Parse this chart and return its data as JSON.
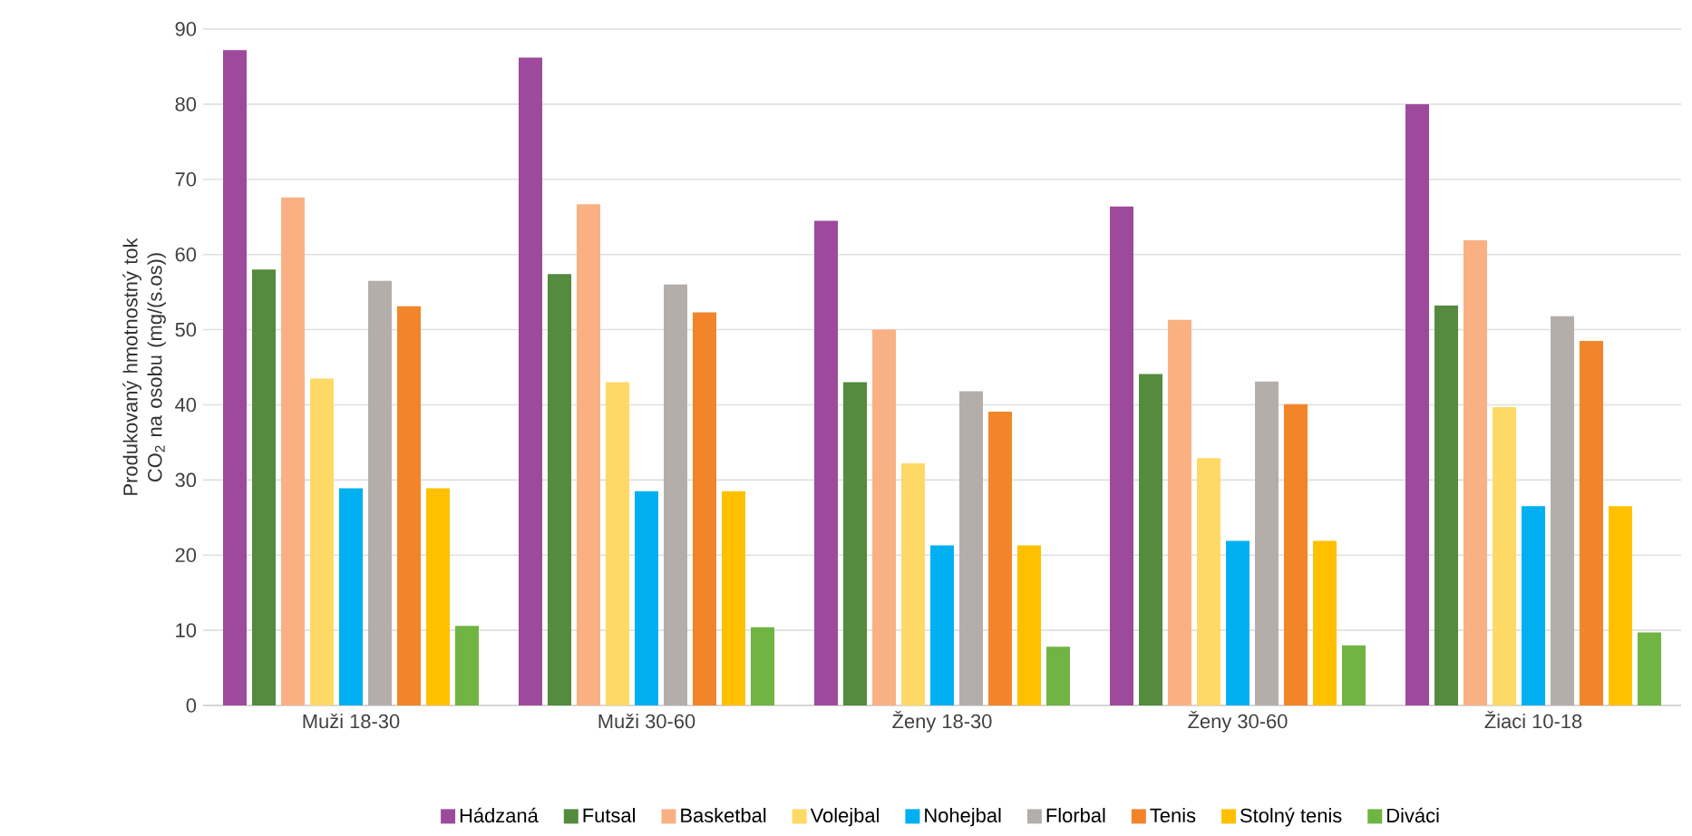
{
  "chart_data": {
    "type": "bar",
    "ylabel": "Produkovaný hmotnostný tok CO$_{2}$ na osobu (mg/(s.os))",
    "categories": [
      "Muži 18-30",
      "Muži 30-60",
      "Ženy 18-30",
      "Ženy 30-60",
      "Žiaci 10-18"
    ],
    "series": [
      {
        "name": "Hádzaná",
        "color": "#9e4a9c",
        "values": [
          87.2,
          86.2,
          64.5,
          66.4,
          80.0
        ]
      },
      {
        "name": "Futsal",
        "color": "#548b3e",
        "values": [
          58.0,
          57.4,
          43.0,
          44.1,
          53.2
        ]
      },
      {
        "name": "Basketbal",
        "color": "#f9b183",
        "values": [
          67.6,
          66.7,
          50.0,
          51.3,
          61.9
        ]
      },
      {
        "name": "Volejbal",
        "color": "#ffd966",
        "values": [
          43.5,
          43.0,
          32.2,
          32.9,
          39.7
        ]
      },
      {
        "name": "Nohejbal",
        "color": "#00b0f0",
        "values": [
          28.9,
          28.5,
          21.3,
          21.9,
          26.5
        ]
      },
      {
        "name": "Florbal",
        "color": "#b4aeab",
        "values": [
          56.5,
          56.0,
          41.8,
          43.1,
          51.8
        ]
      },
      {
        "name": "Tenis",
        "color": "#f28529",
        "values": [
          53.1,
          52.3,
          39.1,
          40.1,
          48.5
        ]
      },
      {
        "name": "Stolný tenis",
        "color": "#ffc000",
        "values": [
          28.9,
          28.5,
          21.3,
          21.9,
          26.5
        ]
      },
      {
        "name": "Diváci",
        "color": "#70b443",
        "values": [
          10.6,
          10.4,
          7.8,
          8.0,
          9.7
        ]
      }
    ],
    "ylim": [
      0,
      90
    ],
    "yticks": [
      0,
      10,
      20,
      30,
      40,
      50,
      60,
      70,
      80,
      90
    ],
    "grid": "y",
    "legend": "bottom"
  }
}
